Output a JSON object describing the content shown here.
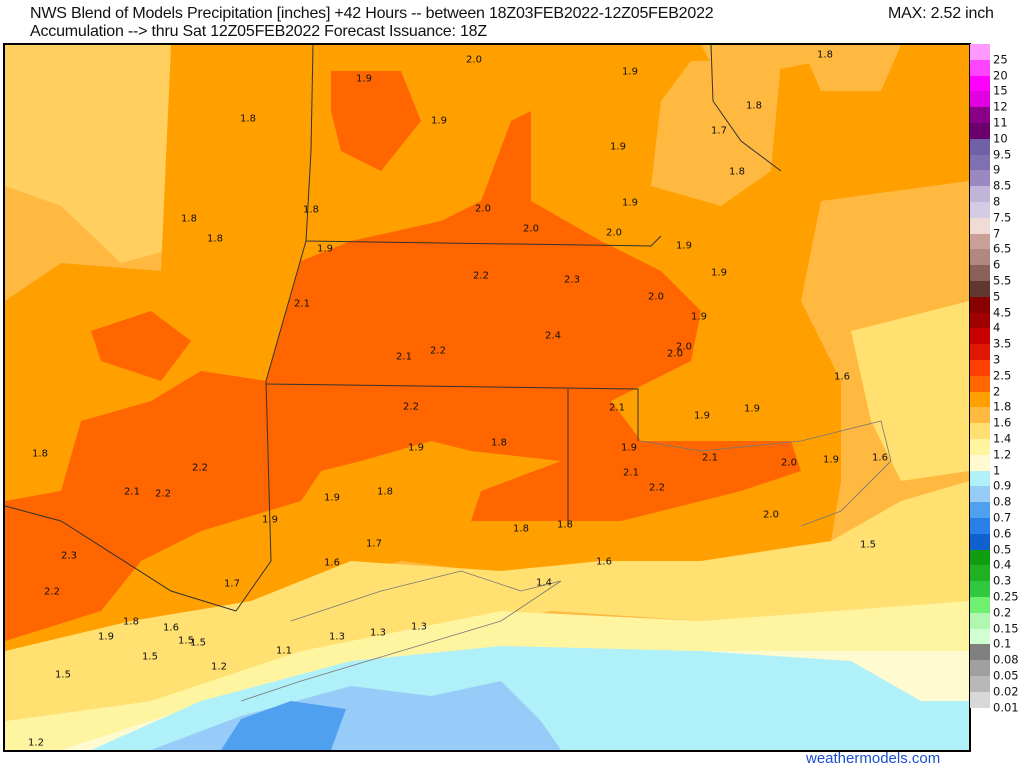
{
  "header": {
    "title_line1": "NWS Blend of Models Precipitation [inches] +42 Hours -- between 18Z03FEB2022-12Z05FEB2022",
    "title_line2": "Accumulation --> thru Sat 12Z05FEB2022   Forecast Issuance: 18Z",
    "max_label": "MAX: 2.52 inch"
  },
  "map": {
    "values": [
      "1.8",
      "2.0",
      "1.9",
      "1.9",
      "1.8",
      "1.8",
      "1.9",
      "1.7",
      "1.9",
      "1.8",
      "1.9",
      "1.8",
      "2.0",
      "1.8",
      "1.8",
      "2.0",
      "2.0",
      "1.9",
      "1.9",
      "2.2",
      "2.3",
      "1.9",
      "2.0",
      "2.1",
      "1.9",
      "2.4",
      "2.0",
      "2.0",
      "2.1",
      "2.2",
      "1.6",
      "2.2",
      "2.1",
      "1.9",
      "1.9",
      "1.8",
      "1.9",
      "1.9",
      "1.8",
      "2.1",
      "2.0",
      "1.9",
      "1.6",
      "2.2",
      "2.1",
      "2.1",
      "2.2",
      "1.9",
      "1.8",
      "2.2",
      "1.9",
      "2.0",
      "1.8",
      "1.8",
      "1.5",
      "1.7",
      "2.3",
      "1.6",
      "1.6",
      "1.7",
      "1.4",
      "2.2",
      "1.8",
      "1.6",
      "1.9",
      "1.5",
      "1.5",
      "1.3",
      "1.3",
      "1.3",
      "1.1",
      "1.5",
      "1.2",
      "1.5",
      "1.2"
    ]
  },
  "legend": {
    "items": [
      {
        "label": "25",
        "color": "#ff99ff"
      },
      {
        "label": "20",
        "color": "#ff44ff"
      },
      {
        "label": "15",
        "color": "#ff00ff"
      },
      {
        "label": "12",
        "color": "#e000e0"
      },
      {
        "label": "11",
        "color": "#880088"
      },
      {
        "label": "10",
        "color": "#6a006e"
      },
      {
        "label": "9.5",
        "color": "#7060a8"
      },
      {
        "label": "9",
        "color": "#8070b0"
      },
      {
        "label": "8.5",
        "color": "#9a88c0"
      },
      {
        "label": "8",
        "color": "#c0b4d8"
      },
      {
        "label": "7.5",
        "color": "#d4cce4"
      },
      {
        "label": "7",
        "color": "#f0dcd4"
      },
      {
        "label": "6.5",
        "color": "#c8a098"
      },
      {
        "label": "6",
        "color": "#b08880"
      },
      {
        "label": "5.5",
        "color": "#8a6058"
      },
      {
        "label": "5",
        "color": "#603830"
      },
      {
        "label": "4.5",
        "color": "#880000"
      },
      {
        "label": "4",
        "color": "#a00000"
      },
      {
        "label": "3.5",
        "color": "#c80000"
      },
      {
        "label": "3",
        "color": "#e01800"
      },
      {
        "label": "2.5",
        "color": "#ff4000"
      },
      {
        "label": "2",
        "color": "#ff6600"
      },
      {
        "label": "1.8",
        "color": "#ffa000"
      },
      {
        "label": "1.6",
        "color": "#ffb840"
      },
      {
        "label": "1.4",
        "color": "#ffe070"
      },
      {
        "label": "1.2",
        "color": "#fff4a0"
      },
      {
        "label": "1",
        "color": "#fffad0"
      },
      {
        "label": "0.9",
        "color": "#b0f0f8"
      },
      {
        "label": "0.8",
        "color": "#98ccf8"
      },
      {
        "label": "0.7",
        "color": "#50a0f0"
      },
      {
        "label": "0.6",
        "color": "#2880e8"
      },
      {
        "label": "0.5",
        "color": "#1060d0"
      },
      {
        "label": "0.4",
        "color": "#109e10"
      },
      {
        "label": "0.3",
        "color": "#20b020"
      },
      {
        "label": "0.25",
        "color": "#30c840"
      },
      {
        "label": "0.2",
        "color": "#70f070"
      },
      {
        "label": "0.15",
        "color": "#b0f8b0"
      },
      {
        "label": "0.1",
        "color": "#d0ffd0"
      },
      {
        "label": "0.08",
        "color": "#808080"
      },
      {
        "label": "0.05",
        "color": "#a0a0a0"
      },
      {
        "label": "0.02",
        "color": "#b8b8b8"
      },
      {
        "label": "0.01",
        "color": "#d8d8d8"
      }
    ]
  },
  "footer": {
    "site": "weathermodels.com"
  }
}
